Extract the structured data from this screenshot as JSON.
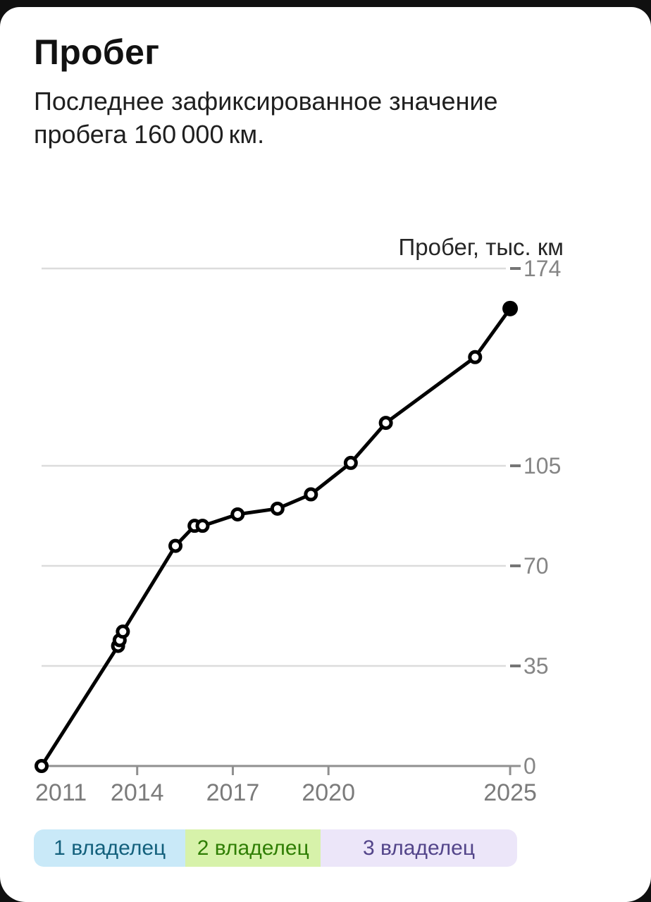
{
  "page": {
    "background": "#101010",
    "card_background": "#ffffff"
  },
  "header": {
    "title": "Пробег",
    "subtitle": "Последнее зафиксированное значение пробега 160 000 км."
  },
  "chart_data": {
    "type": "line",
    "title": "Пробег, тыс. км",
    "ylabel": "Пробег, тыс. км",
    "xlabel": "",
    "units": "тыс. км",
    "grid": "horizontal",
    "legend_position": "bottom",
    "x_range": [
      2010.76,
      2025.92
    ],
    "y_range": [
      0,
      174
    ],
    "series": [
      {
        "name": "Пробег, тыс. км",
        "x": [
          2011.0,
          2013.4,
          2013.45,
          2013.55,
          2015.2,
          2015.8,
          2016.05,
          2017.15,
          2018.4,
          2019.45,
          2020.7,
          2021.8,
          2024.6,
          2025.7
        ],
        "y": [
          0,
          42,
          44,
          47,
          77,
          84,
          84,
          88,
          90,
          95,
          106,
          120,
          143,
          160
        ]
      }
    ],
    "last_point_style": "filled",
    "x_ticks": [
      {
        "year": 2011,
        "label": "2011",
        "tick": false
      },
      {
        "year": 2014,
        "label": "2014",
        "tick": true
      },
      {
        "year": 2017,
        "label": "2017",
        "tick": true
      },
      {
        "year": 2020,
        "label": "2020",
        "tick": true
      },
      {
        "year": 2025.7,
        "label": "2025",
        "tick": true
      }
    ],
    "y_ticks": [
      {
        "value": 174,
        "label": "174"
      },
      {
        "value": 105,
        "label": "105"
      },
      {
        "value": 70,
        "label": "70"
      },
      {
        "value": 35,
        "label": "35"
      },
      {
        "value": 0,
        "label": "0"
      }
    ]
  },
  "legend": {
    "segments": [
      {
        "label": "1 владелец",
        "start": 2010.76,
        "end": 2015.52,
        "bg": "#c9e9f8",
        "fg": "#13607c"
      },
      {
        "label": "2 владелец",
        "start": 2015.52,
        "end": 2019.76,
        "bg": "#d7f2aa",
        "fg": "#2f7e04"
      },
      {
        "label": "3 владелец",
        "start": 2019.76,
        "end": 2025.92,
        "bg": "#ece6f9",
        "fg": "#53458a"
      }
    ]
  },
  "colors": {
    "line": "#000000",
    "point_fill": "#ffffff",
    "gridline": "#dcdcdc",
    "axis": "#8f8f8f",
    "y_dash": "#757575",
    "x_label": "#7b7b7b",
    "y_label": "#858585",
    "axis_title": "#262626"
  }
}
